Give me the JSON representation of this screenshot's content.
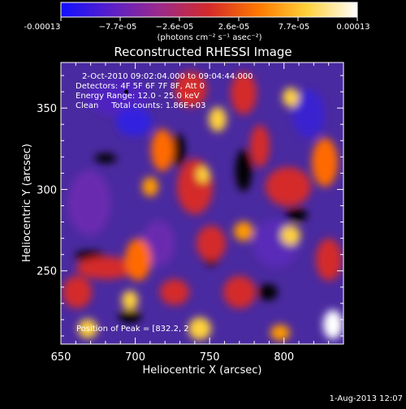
{
  "colorbar": {
    "tick_labels": [
      "-0.00013",
      "−7.7e-05",
      "−2.6e-05",
      "2.6e-05",
      "7.7e-05",
      "0.00013"
    ],
    "unit_label": "(photons cm⁻² s⁻¹ asec⁻²)",
    "range": [
      -0.00013,
      0.00013
    ],
    "colors": [
      "#1010ff",
      "#5a20c8",
      "#9a2a8c",
      "#d42a2a",
      "#ff7a00",
      "#ffd23a",
      "#ffffff"
    ]
  },
  "chart_data": {
    "type": "heatmap",
    "title": "Reconstructed RHESSI Image",
    "xlabel": "Heliocentric X (arcsec)",
    "ylabel": "Heliocentric Y (arcsec)",
    "xlim": [
      650,
      840
    ],
    "ylim": [
      205,
      378
    ],
    "x_ticks": [
      650,
      700,
      750,
      800
    ],
    "y_ticks": [
      250,
      300,
      350
    ],
    "grid": false,
    "annotations": {
      "time_range": "2-Oct-2010 09:02:04.000 to 09:04:44.000",
      "detectors": "Detectors: 4F 5F 6F 7F 8F, Att 0",
      "energy_range": "Energy Range: 12.0 - 25.0 keV",
      "clean_counts": "Clean     Total counts: 1.86E+03",
      "peak_position": "Position of Peak = [832.2, 2"
    },
    "marker": {
      "x": 694,
      "y": 360
    }
  },
  "footer": {
    "timestamp": "1-Aug-2013 12:07"
  }
}
